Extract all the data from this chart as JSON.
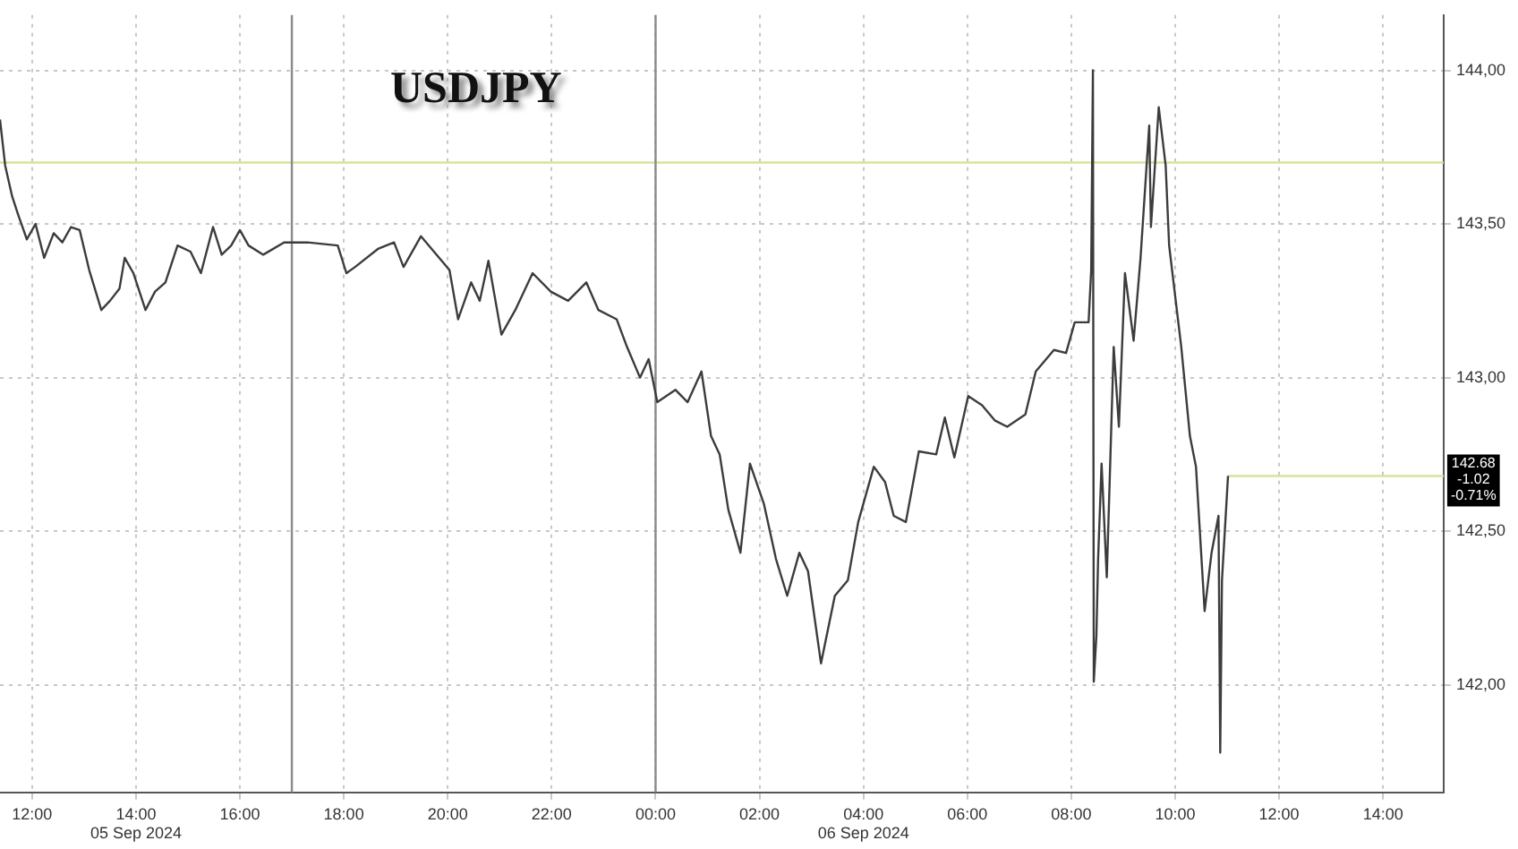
{
  "chart_data": {
    "type": "line",
    "title": "USDJPY",
    "color": "#3c3c3c",
    "grid": true,
    "legend": false,
    "line_style": "solid",
    "x": [
      "2024-09-05T11:23",
      "2024-09-05T11:29",
      "2024-09-05T11:37",
      "2024-09-05T11:44",
      "2024-09-05T11:54",
      "2024-09-05T12:04",
      "2024-09-05T12:14",
      "2024-09-05T12:25",
      "2024-09-05T12:35",
      "2024-09-05T12:45",
      "2024-09-05T12:55",
      "2024-09-05T13:06",
      "2024-09-05T13:20",
      "2024-09-05T13:30",
      "2024-09-05T13:41",
      "2024-09-05T13:47",
      "2024-09-05T13:57",
      "2024-09-05T14:11",
      "2024-09-05T14:22",
      "2024-09-05T14:34",
      "2024-09-05T14:48",
      "2024-09-05T15:03",
      "2024-09-05T15:15",
      "2024-09-05T15:29",
      "2024-09-05T15:39",
      "2024-09-05T15:50",
      "2024-09-05T16:00",
      "2024-09-05T16:10",
      "2024-09-05T16:27",
      "2024-09-05T16:51",
      "2024-09-05T17:18",
      "2024-09-05T17:53",
      "2024-09-05T18:03",
      "2024-09-05T18:13",
      "2024-09-05T18:40",
      "2024-09-05T18:58",
      "2024-09-05T19:09",
      "2024-09-05T19:29",
      "2024-09-05T19:50",
      "2024-09-05T20:02",
      "2024-09-05T20:12",
      "2024-09-05T20:27",
      "2024-09-05T20:37",
      "2024-09-05T20:47",
      "2024-09-05T21:02",
      "2024-09-05T21:18",
      "2024-09-05T21:38",
      "2024-09-05T21:59",
      "2024-09-05T22:19",
      "2024-09-05T22:40",
      "2024-09-05T22:54",
      "2024-09-05T23:15",
      "2024-09-05T23:27",
      "2024-09-05T23:42",
      "2024-09-05T23:52",
      "2024-09-06T00:02",
      "2024-09-06T00:23",
      "2024-09-06T00:37",
      "2024-09-06T00:53",
      "2024-09-06T01:04",
      "2024-09-06T01:14",
      "2024-09-06T01:24",
      "2024-09-06T01:38",
      "2024-09-06T01:49",
      "2024-09-06T02:05",
      "2024-09-06T02:19",
      "2024-09-06T02:32",
      "2024-09-06T02:46",
      "2024-09-06T02:56",
      "2024-09-06T03:11",
      "2024-09-06T03:27",
      "2024-09-06T03:42",
      "2024-09-06T03:54",
      "2024-09-06T04:12",
      "2024-09-06T04:25",
      "2024-09-06T04:35",
      "2024-09-06T04:49",
      "2024-09-06T05:04",
      "2024-09-06T05:24",
      "2024-09-06T05:34",
      "2024-09-06T05:45",
      "2024-09-06T06:01",
      "2024-09-06T06:17",
      "2024-09-06T06:32",
      "2024-09-06T06:46",
      "2024-09-06T07:07",
      "2024-09-06T07:19",
      "2024-09-06T07:40",
      "2024-09-06T07:54",
      "2024-09-06T08:04",
      "2024-09-06T08:20",
      "2024-09-06T08:23",
      "2024-09-06T08:25",
      "2024-09-06T08:26",
      "2024-09-06T08:29",
      "2024-09-06T08:31",
      "2024-09-06T08:35",
      "2024-09-06T08:41",
      "2024-09-06T08:49",
      "2024-09-06T08:55",
      "2024-09-06T09:02",
      "2024-09-06T09:12",
      "2024-09-06T09:20",
      "2024-09-06T09:30",
      "2024-09-06T09:32",
      "2024-09-06T09:41",
      "2024-09-06T09:49",
      "2024-09-06T09:53",
      "2024-09-06T10:07",
      "2024-09-06T10:17",
      "2024-09-06T10:24",
      "2024-09-06T10:34",
      "2024-09-06T10:42",
      "2024-09-06T10:50",
      "2024-09-06T10:52",
      "2024-09-06T10:54",
      "2024-09-06T11:01"
    ],
    "values": [
      143.84,
      143.69,
      143.59,
      143.53,
      143.45,
      143.5,
      143.39,
      143.47,
      143.44,
      143.49,
      143.48,
      143.35,
      143.22,
      143.25,
      143.29,
      143.39,
      143.34,
      143.22,
      143.28,
      143.31,
      143.43,
      143.41,
      143.34,
      143.49,
      143.4,
      143.43,
      143.48,
      143.43,
      143.4,
      143.44,
      143.44,
      143.43,
      143.34,
      143.36,
      143.42,
      143.44,
      143.36,
      143.46,
      143.39,
      143.35,
      143.19,
      143.31,
      143.25,
      143.38,
      143.14,
      143.22,
      143.34,
      143.28,
      143.25,
      143.31,
      143.22,
      143.19,
      143.1,
      143.0,
      143.06,
      142.92,
      142.96,
      142.92,
      143.02,
      142.81,
      142.75,
      142.57,
      142.43,
      142.72,
      142.59,
      142.41,
      142.29,
      142.43,
      142.37,
      142.07,
      142.29,
      142.34,
      142.53,
      142.71,
      142.66,
      142.55,
      142.53,
      142.76,
      142.75,
      142.87,
      142.74,
      142.94,
      142.91,
      142.86,
      142.84,
      142.88,
      143.02,
      143.09,
      143.08,
      143.18,
      143.18,
      143.35,
      144.0,
      142.01,
      142.16,
      142.41,
      142.72,
      142.35,
      143.1,
      142.84,
      143.34,
      143.12,
      143.39,
      143.82,
      143.49,
      143.88,
      143.69,
      143.43,
      143.1,
      142.81,
      142.71,
      142.24,
      142.43,
      142.55,
      141.78,
      142.34,
      142.68
    ],
    "xlim": [
      "2024-09-05T11:23",
      "2024-09-06T15:10"
    ],
    "xticks": [
      {
        "value": "2024-09-05T12:00",
        "label": "12:00"
      },
      {
        "value": "2024-09-05T14:00",
        "label": "14:00\n05 Sep 2024"
      },
      {
        "value": "2024-09-05T16:00",
        "label": "16:00"
      },
      {
        "value": "2024-09-05T18:00",
        "label": "18:00"
      },
      {
        "value": "2024-09-05T20:00",
        "label": "20:00"
      },
      {
        "value": "2024-09-05T22:00",
        "label": "22:00"
      },
      {
        "value": "2024-09-06T00:00",
        "label": "00:00"
      },
      {
        "value": "2024-09-06T02:00",
        "label": "02:00"
      },
      {
        "value": "2024-09-06T04:00",
        "label": "04:00\n06 Sep 2024"
      },
      {
        "value": "2024-09-06T06:00",
        "label": "06:00"
      },
      {
        "value": "2024-09-06T08:00",
        "label": "08:00"
      },
      {
        "value": "2024-09-06T10:00",
        "label": "10:00"
      },
      {
        "value": "2024-09-06T12:00",
        "label": "12:00"
      },
      {
        "value": "2024-09-06T14:00",
        "label": "14:00"
      }
    ],
    "ylim": [
      141.65,
      144.18
    ],
    "yticks": [
      {
        "value": 142,
        "label": "142,00"
      },
      {
        "value": 142.5,
        "label": "142,50"
      },
      {
        "value": 143,
        "label": "143,00"
      },
      {
        "value": 143.5,
        "label": "143,50"
      },
      {
        "value": 144,
        "label": "144,00"
      }
    ],
    "ref_lines": [
      {
        "axis": "y",
        "value": 143.7,
        "color": "#d8e29a"
      },
      {
        "axis": "y",
        "value": 142.68,
        "label": "142.68\n-1.02\n-0.71%",
        "color": "#d8e29a"
      },
      {
        "axis": "x",
        "value": "2024-09-05T17:00",
        "color": "#8a8a8a"
      },
      {
        "axis": "x",
        "value": "2024-09-06T00:00",
        "color": "#8a8a8a"
      }
    ]
  }
}
